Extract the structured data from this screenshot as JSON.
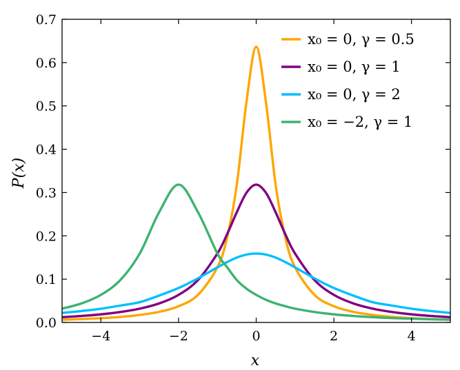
{
  "chart_data": {
    "type": "line",
    "title": "",
    "xlabel": "x",
    "ylabel": "P(x)",
    "xlim": [
      -5,
      5
    ],
    "ylim": [
      0,
      0.7
    ],
    "xticks": [
      -4,
      -2,
      0,
      2,
      4
    ],
    "xtick_labels": [
      "−4",
      "−2",
      "0",
      "2",
      "4"
    ],
    "yticks": [
      0.0,
      0.1,
      0.2,
      0.3,
      0.4,
      0.5,
      0.6,
      0.7
    ],
    "ytick_labels": [
      "0.0",
      "0.1",
      "0.2",
      "0.3",
      "0.4",
      "0.5",
      "0.6",
      "0.7"
    ],
    "grid": false,
    "legend_position": "top-right",
    "x": [
      -5,
      -4.5,
      -4,
      -3.5,
      -3,
      -2.5,
      -2,
      -1.5,
      -1,
      -0.75,
      -0.5,
      -0.25,
      0,
      0.25,
      0.5,
      0.75,
      1,
      1.5,
      2,
      2.5,
      3,
      3.5,
      4,
      4.5,
      5
    ],
    "series": [
      {
        "name": "x₀ = 0, γ = 0.5",
        "color": "#ffa500",
        "values": [
          0.0063,
          0.0078,
          0.0098,
          0.0128,
          0.0174,
          0.0245,
          0.0374,
          0.0637,
          0.1273,
          0.1959,
          0.3183,
          0.5093,
          0.6366,
          0.5093,
          0.3183,
          0.1959,
          0.1273,
          0.0637,
          0.0374,
          0.0245,
          0.0174,
          0.0128,
          0.0098,
          0.0078,
          0.0063
        ]
      },
      {
        "name": "x₀ = 0, γ = 1",
        "color": "#800080",
        "values": [
          0.0122,
          0.015,
          0.0187,
          0.0241,
          0.0318,
          0.0439,
          0.0637,
          0.0979,
          0.1592,
          0.2037,
          0.2546,
          0.2996,
          0.3183,
          0.2996,
          0.2546,
          0.2037,
          0.1592,
          0.0979,
          0.0637,
          0.0439,
          0.0318,
          0.0241,
          0.0187,
          0.015,
          0.0122
        ]
      },
      {
        "name": "x₀ = 0, γ = 2",
        "color": "#00bfff",
        "values": [
          0.022,
          0.0264,
          0.0318,
          0.039,
          0.0468,
          0.0621,
          0.0796,
          0.1019,
          0.1273,
          0.1393,
          0.1498,
          0.1567,
          0.1592,
          0.1567,
          0.1498,
          0.1393,
          0.1273,
          0.1019,
          0.0796,
          0.0621,
          0.0468,
          0.039,
          0.0318,
          0.0264,
          0.022
        ]
      },
      {
        "name": "x₀ = −2, γ = 1",
        "color": "#3cb371",
        "values": [
          0.0318,
          0.0439,
          0.0637,
          0.0979,
          0.1592,
          0.2546,
          0.3183,
          0.2546,
          0.1592,
          0.1276,
          0.0979,
          0.078,
          0.0637,
          0.0524,
          0.0439,
          0.0375,
          0.0318,
          0.0241,
          0.0187,
          0.015,
          0.0122,
          0.0101,
          0.0086,
          0.0073,
          0.0063
        ]
      }
    ]
  }
}
